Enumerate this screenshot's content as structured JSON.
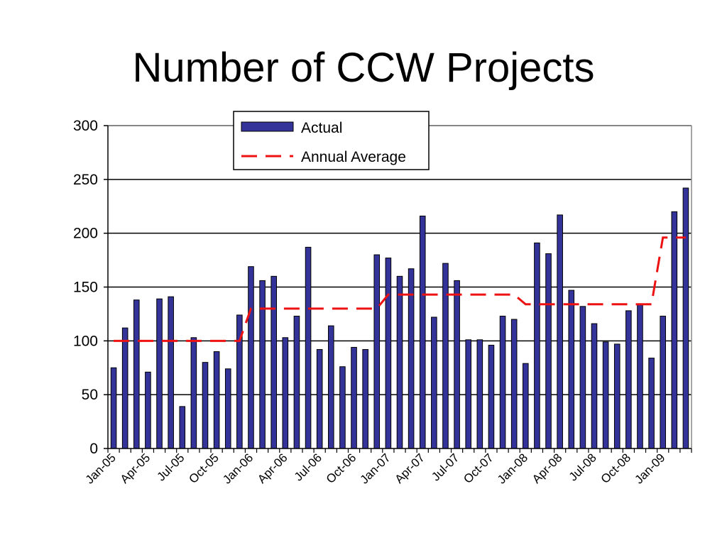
{
  "chart_data": {
    "type": "bar",
    "title": "Number of CCW Projects",
    "xlabel": "",
    "ylabel": "",
    "ylim": [
      0,
      300
    ],
    "yticks": [
      0,
      50,
      100,
      150,
      200,
      250,
      300
    ],
    "grid": true,
    "legend_position": "top-center",
    "categories": [
      "Jan-05",
      "Feb-05",
      "Mar-05",
      "Apr-05",
      "May-05",
      "Jun-05",
      "Jul-05",
      "Aug-05",
      "Sep-05",
      "Oct-05",
      "Nov-05",
      "Dec-05",
      "Jan-06",
      "Feb-06",
      "Mar-06",
      "Apr-06",
      "May-06",
      "Jun-06",
      "Jul-06",
      "Aug-06",
      "Sep-06",
      "Oct-06",
      "Nov-06",
      "Dec-06",
      "Jan-07",
      "Feb-07",
      "Mar-07",
      "Apr-07",
      "May-07",
      "Jun-07",
      "Jul-07",
      "Aug-07",
      "Sep-07",
      "Oct-07",
      "Nov-07",
      "Dec-07",
      "Jan-08",
      "Feb-08",
      "Mar-08",
      "Apr-08",
      "May-08",
      "Jun-08",
      "Jul-08",
      "Aug-08",
      "Sep-08",
      "Oct-08",
      "Nov-08",
      "Dec-08",
      "Jan-09",
      "Feb-09",
      "Mar-09"
    ],
    "tick_labels": [
      "Jan-05",
      "Apr-05",
      "Jul-05",
      "Oct-05",
      "Jan-06",
      "Apr-06",
      "Jul-06",
      "Oct-06",
      "Jan-07",
      "Apr-07",
      "Jul-07",
      "Oct-07",
      "Jan-08",
      "Apr-08",
      "Jul-08",
      "Oct-08",
      "Jan-09"
    ],
    "series": [
      {
        "name": "Actual",
        "kind": "bar",
        "color": "#333399",
        "values": [
          75,
          112,
          138,
          71,
          139,
          141,
          39,
          103,
          80,
          90,
          74,
          124,
          169,
          156,
          160,
          103,
          123,
          187,
          92,
          114,
          76,
          94,
          92,
          180,
          177,
          160,
          167,
          216,
          122,
          172,
          156,
          101,
          101,
          96,
          123,
          120,
          79,
          191,
          181,
          217,
          147,
          132,
          116,
          99,
          97,
          128,
          134,
          84,
          123,
          220,
          242
        ]
      },
      {
        "name": "Annual Average",
        "kind": "line",
        "style": "dashed",
        "color": "#ee1111",
        "values": [
          100,
          100,
          100,
          100,
          100,
          100,
          100,
          100,
          100,
          100,
          100,
          100,
          130,
          130,
          130,
          130,
          130,
          130,
          130,
          130,
          130,
          130,
          130,
          130,
          143,
          143,
          143,
          143,
          143,
          143,
          143,
          143,
          143,
          143,
          143,
          143,
          134,
          134,
          134,
          134,
          134,
          134,
          134,
          134,
          134,
          134,
          134,
          134,
          196,
          196,
          196
        ]
      }
    ]
  }
}
